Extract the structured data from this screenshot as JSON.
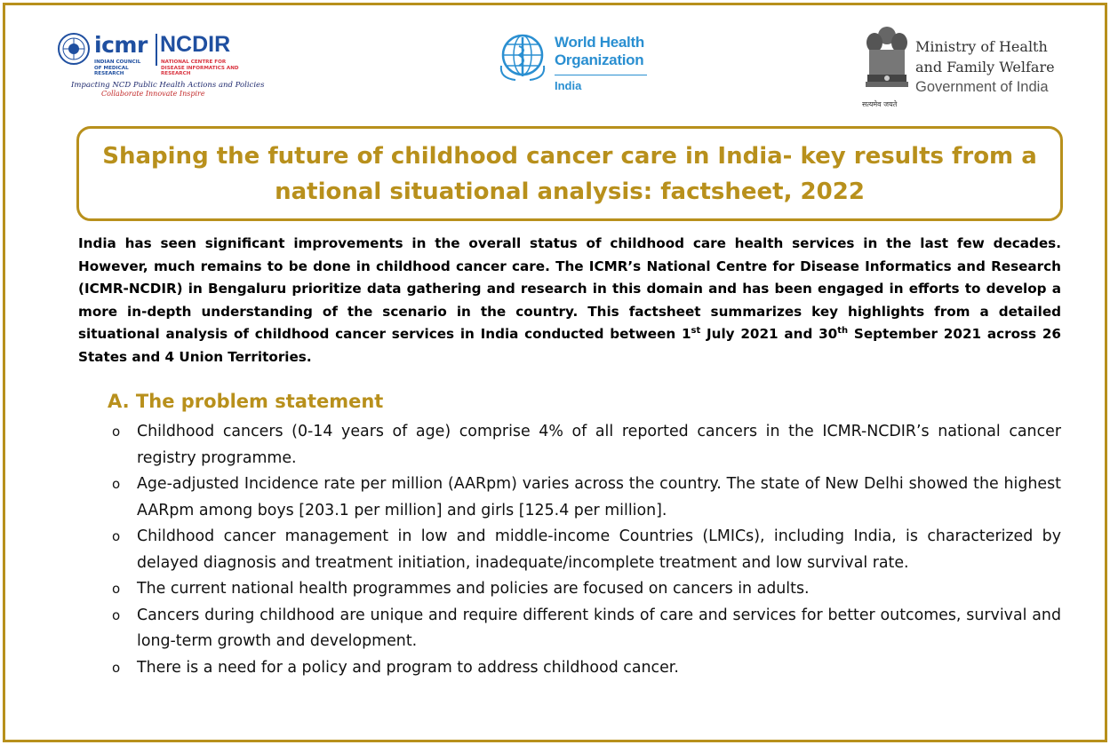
{
  "header": {
    "icmr": {
      "name": "icmr",
      "subtitle": "INDIAN COUNCIL OF MEDICAL RESEARCH",
      "ncdir": "NCDIR",
      "ncdir_subtitle": "NATIONAL CENTRE FOR DISEASE INFORMATICS AND RESEARCH",
      "tagline": "Impacting NCD Public Health Actions and Policies",
      "motto": "Collaborate  Innovate  Inspire"
    },
    "who": {
      "name_line1": "World Health",
      "name_line2": "Organization",
      "country": "India"
    },
    "ministry": {
      "line1": "Ministry of Health",
      "line2": "and Family Welfare",
      "line3": "Government of India",
      "motto": "सत्यमेव जयते"
    },
    "colors": {
      "accent": "#B8901C",
      "icmr_blue": "#1f4fa0",
      "who_blue": "#2a8fd1"
    }
  },
  "title": "Shaping the future of childhood cancer care in India- key results from a national situational analysis: factsheet, 2022",
  "intro": {
    "text_a": "India has seen significant improvements in the overall status of childhood care health services in the last few decades. However, much remains to be done in childhood cancer care. The ICMR’s National Centre for Disease Informatics and Research (ICMR-NCDIR) in Bengaluru prioritize data gathering and research in this domain and has been engaged in efforts to develop a more in-depth understanding of the scenario in the country. This factsheet summarizes key highlights from a detailed situational analysis of childhood cancer services in India conducted between 1",
    "sup_1": "st",
    "text_b": " July 2021 and 30",
    "sup_2": "th",
    "text_c": " September 2021 across 26 States and 4 Union Territories."
  },
  "section": {
    "heading": "A. The problem statement",
    "bullet_marker": "o",
    "items": [
      "Childhood cancers (0-14 years of age) comprise 4% of all reported cancers in the ICMR-NCDIR’s national cancer registry programme.",
      "Age-adjusted Incidence rate per million (AARpm) varies across the country. The state of New Delhi showed the highest AARpm among boys [203.1 per million] and girls [125.4 per million].",
      "Childhood cancer management in low and middle-income Countries (LMICs), including India, is characterized by delayed diagnosis and treatment initiation, inadequate/incomplete treatment and low survival rate.",
      "The current national health programmes and policies are focused on cancers in adults.",
      "Cancers during childhood are unique and require different kinds of care and services for better outcomes, survival and long-term growth and development.",
      "There is a need for a policy and program to address childhood cancer."
    ]
  }
}
